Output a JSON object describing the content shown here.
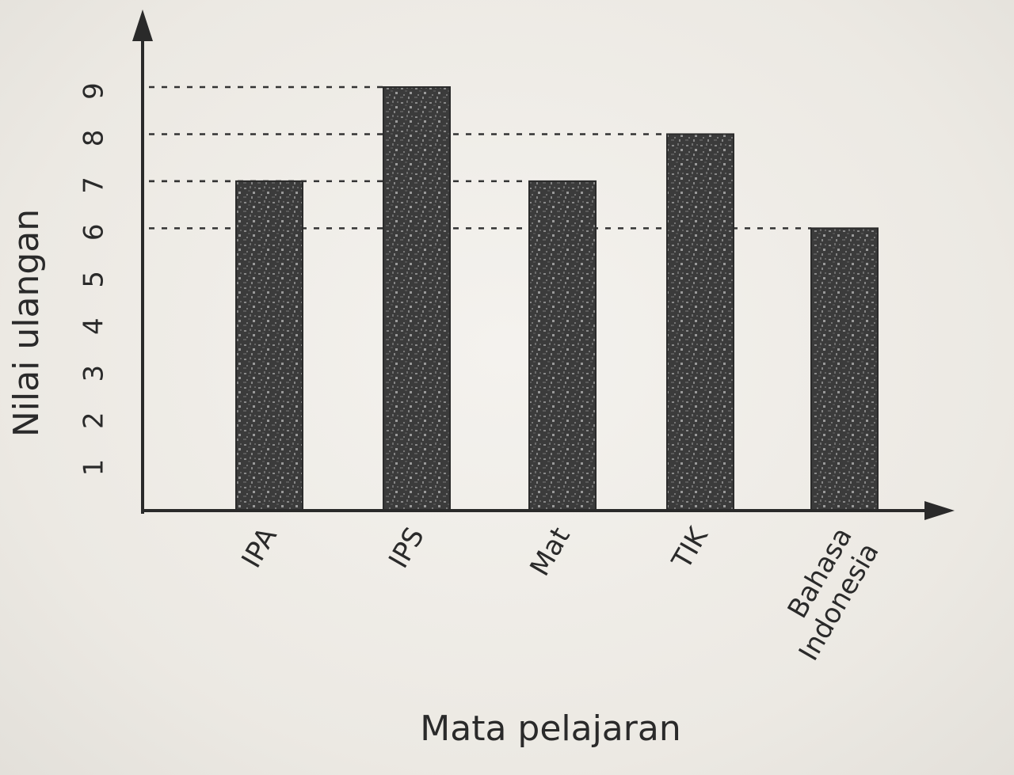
{
  "chart_data": {
    "type": "bar",
    "categories": [
      "IPA",
      "IPS",
      "Mat",
      "TIK",
      "Bahasa Indonesia"
    ],
    "category_lines": [
      [
        "IPA"
      ],
      [
        "IPS"
      ],
      [
        "Mat"
      ],
      [
        "TIK"
      ],
      [
        "Bahasa",
        "Indonesia"
      ]
    ],
    "values": [
      7,
      9,
      7,
      8,
      6
    ],
    "yticks": [
      1,
      2,
      3,
      4,
      5,
      6,
      7,
      8,
      9
    ],
    "ylim": [
      0,
      9.8
    ],
    "xlabel": "Mata pelajaran",
    "ylabel": "Nilai ulangan",
    "bar_color": "#3a3a3a",
    "grid": false
  }
}
